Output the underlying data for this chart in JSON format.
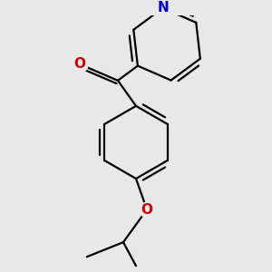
{
  "background_color": "#e8e8e8",
  "bond_color": "#000000",
  "atom_colors": {
    "N": "#0000cc",
    "O_carbonyl": "#cc0000",
    "O_ether": "#cc0000"
  },
  "line_width": 1.6,
  "figsize": [
    3.0,
    3.0
  ],
  "dpi": 100,
  "label_fontsize": 11,
  "xlim": [
    -2.5,
    2.5
  ],
  "ylim": [
    -3.5,
    3.5
  ]
}
